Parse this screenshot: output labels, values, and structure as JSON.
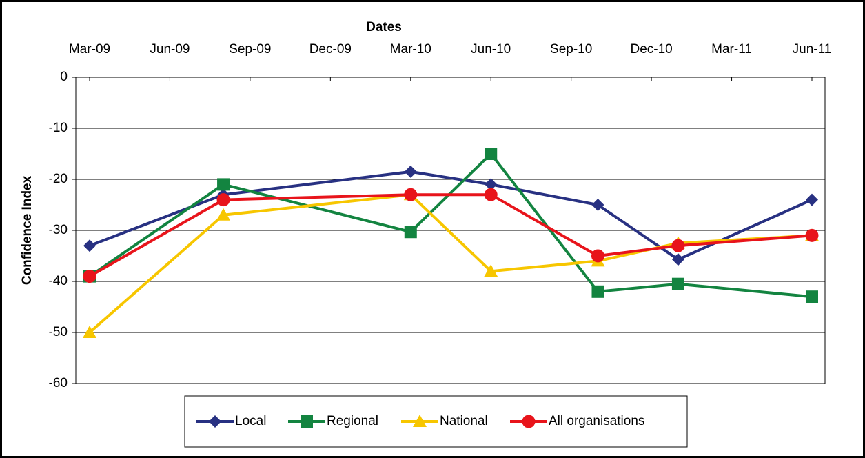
{
  "chart_data": {
    "type": "line",
    "title": "Dates",
    "y_label": "Confidence Index",
    "x": [
      "2009-03",
      "2009-08",
      "2010-03",
      "2010-06",
      "2010-10",
      "2011-01",
      "2011-06"
    ],
    "xlim": [
      "2009-03",
      "2011-06"
    ],
    "xticks": [
      {
        "value": "2009-03",
        "label": "Mar-09"
      },
      {
        "value": "2009-06",
        "label": "Jun-09"
      },
      {
        "value": "2009-09",
        "label": "Sep-09"
      },
      {
        "value": "2009-12",
        "label": "Dec-09"
      },
      {
        "value": "2010-03",
        "label": "Mar-10"
      },
      {
        "value": "2010-06",
        "label": "Jun-10"
      },
      {
        "value": "2010-09",
        "label": "Sep-10"
      },
      {
        "value": "2010-12",
        "label": "Dec-10"
      },
      {
        "value": "2011-03",
        "label": "Mar-11"
      },
      {
        "value": "2011-06",
        "label": "Jun-11"
      }
    ],
    "ylim": [
      0,
      -60
    ],
    "yticks": [
      0,
      -10,
      -20,
      -30,
      -40,
      -50,
      -60
    ],
    "grid": true,
    "legend": "bottom",
    "series": [
      {
        "name": "Local",
        "color": "#283182",
        "marker": "diamond",
        "values": [
          -33,
          -23,
          -18.5,
          -21,
          -25,
          -35.7,
          -24
        ]
      },
      {
        "name": "Regional",
        "color": "#138440",
        "marker": "square",
        "values": [
          -39,
          -21,
          -30.3,
          -15,
          -42,
          -40.5,
          -43
        ]
      },
      {
        "name": "National",
        "color": "#f7c600",
        "marker": "triangle",
        "values": [
          -50,
          -27,
          -23,
          -38,
          -36,
          -32.5,
          -31
        ]
      },
      {
        "name": "All organisations",
        "color": "#e8141b",
        "marker": "circle",
        "values": [
          -39,
          -24,
          -23,
          -23,
          -35,
          -33,
          -31
        ]
      }
    ]
  }
}
